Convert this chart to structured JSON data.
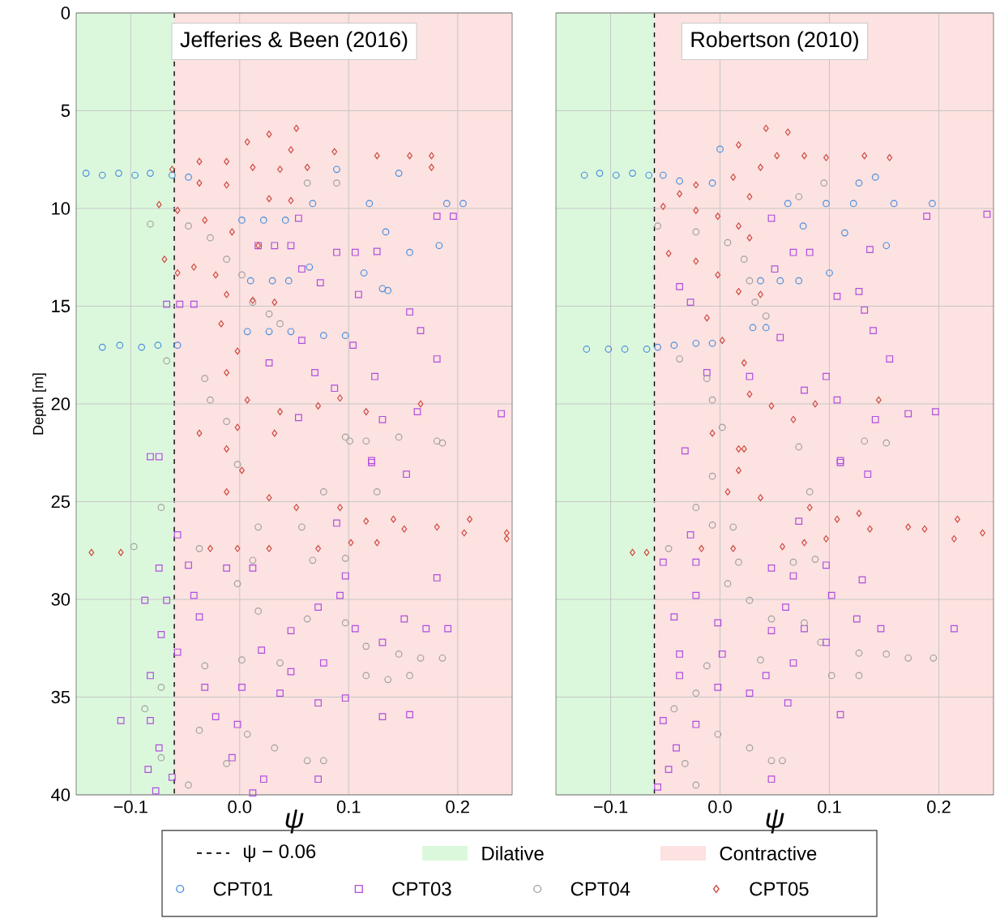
{
  "chart_data": [
    {
      "type": "scatter",
      "title": "Jefferies & Been (2016)",
      "xlabel": "ψ",
      "ylabel": "Depth [m]",
      "xlim": [
        -0.15,
        0.25
      ],
      "ylim": [
        40,
        0
      ],
      "xticks": [
        {
          "value": -0.1,
          "label": "−0.1"
        },
        {
          "value": 0.0,
          "label": "0.0"
        },
        {
          "value": 0.1,
          "label": "0.1"
        },
        {
          "value": 0.2,
          "label": "0.2"
        }
      ],
      "yticks": [
        0,
        5,
        10,
        15,
        20,
        25,
        30,
        35,
        40
      ],
      "grid": true,
      "legend": "bottom",
      "ref_lines": [
        {
          "axis": "x",
          "value": -0.06,
          "label": "ψ − 0.06",
          "color": "#000000",
          "line_style": "dashed"
        }
      ],
      "bands": [
        {
          "axis": "x",
          "from": -0.15,
          "to": -0.06,
          "label": "Dilative",
          "color": "#dcf8dc"
        },
        {
          "axis": "x",
          "from": -0.06,
          "to": 0.25,
          "label": "Contractive",
          "color": "#fce2e0"
        }
      ],
      "series": [
        {
          "name": "CPT01",
          "color": "#4a8ee0",
          "marker": "circle",
          "x": [
            -0.141,
            -0.126,
            -0.111,
            -0.096,
            -0.082,
            -0.062,
            -0.047,
            0.089,
            0.146,
            0.067,
            0.119,
            0.19,
            0.205,
            0.002,
            0.022,
            0.042,
            0.134,
            0.183,
            0.156,
            0.01,
            0.03,
            0.045,
            0.064,
            0.114,
            0.131,
            0.136,
            -0.126,
            -0.11,
            -0.09,
            -0.075,
            -0.057,
            0.007,
            0.027,
            0.047,
            0.077,
            0.097
          ],
          "values": [
            8.2,
            8.3,
            8.2,
            8.3,
            8.2,
            8.3,
            8.4,
            8.0,
            8.2,
            9.75,
            9.75,
            9.75,
            9.75,
            10.6,
            10.6,
            10.6,
            11.2,
            11.9,
            12.25,
            13.7,
            13.7,
            13.7,
            13.0,
            13.3,
            14.1,
            14.2,
            17.1,
            17.0,
            17.1,
            17.0,
            17.0,
            16.3,
            16.3,
            16.3,
            16.5,
            16.5
          ]
        },
        {
          "name": "CPT03",
          "color": "#b04ee0",
          "marker": "square",
          "x": [
            0.054,
            0.181,
            0.196,
            0.089,
            0.106,
            0.126,
            0.057,
            0.074,
            0.109,
            0.156,
            0.166,
            0.181,
            0.057,
            0.104,
            0.027,
            0.069,
            0.124,
            0.087,
            0.24,
            0.163,
            0.131,
            0.054,
            -0.074,
            0.121,
            -0.067,
            -0.055,
            -0.042,
            0.017,
            0.032,
            0.047,
            0.121,
            0.153,
            0.089,
            -0.082,
            -0.057,
            -0.074,
            -0.047,
            -0.012,
            0.012,
            0.097,
            0.181,
            0.092,
            -0.087,
            -0.067,
            -0.042,
            0.072,
            -0.037,
            0.047,
            0.106,
            0.151,
            0.171,
            0.191,
            -0.072,
            -0.057,
            0.131,
            0.02,
            0.077,
            -0.082,
            0.047,
            -0.032,
            0.002,
            0.037,
            0.072,
            0.097,
            -0.109,
            -0.082,
            -0.022,
            0.131,
            0.156,
            -0.002,
            -0.074,
            -0.007,
            -0.084,
            -0.062,
            0.022,
            0.072,
            -0.077,
            0.012
          ],
          "values": [
            10.5,
            10.4,
            10.4,
            12.25,
            12.25,
            12.2,
            13.1,
            13.8,
            14.4,
            15.3,
            16.25,
            17.7,
            16.75,
            17.0,
            17.9,
            18.4,
            18.6,
            19.2,
            20.5,
            20.4,
            20.8,
            20.7,
            22.7,
            23.0,
            14.9,
            14.9,
            14.9,
            11.9,
            11.9,
            11.9,
            22.9,
            23.6,
            26.1,
            22.7,
            26.7,
            28.4,
            28.25,
            28.4,
            28.4,
            28.8,
            28.9,
            29.8,
            30.05,
            30.05,
            29.8,
            30.4,
            30.9,
            31.6,
            31.5,
            31.0,
            31.5,
            31.5,
            31.8,
            32.7,
            32.2,
            32.6,
            33.25,
            33.9,
            33.7,
            34.5,
            34.5,
            34.8,
            35.3,
            35.05,
            36.2,
            36.2,
            36.0,
            36.0,
            35.9,
            36.4,
            37.6,
            38.1,
            38.7,
            39.1,
            39.2,
            39.2,
            39.8,
            39.9
          ]
        },
        {
          "name": "CPT04",
          "color": "#a0a0a0",
          "marker": "circle",
          "x": [
            -0.082,
            -0.047,
            -0.027,
            -0.012,
            0.002,
            0.012,
            0.027,
            0.037,
            -0.067,
            -0.032,
            -0.027,
            -0.012,
            0.101,
            0.116,
            0.146,
            0.181,
            0.062,
            0.089,
            0.097,
            0.186,
            -0.002,
            0.077,
            0.126,
            -0.072,
            0.017,
            0.057,
            -0.097,
            -0.037,
            0.012,
            0.067,
            0.097,
            -0.002,
            0.017,
            0.062,
            0.097,
            0.116,
            0.146,
            0.166,
            0.186,
            -0.032,
            0.002,
            0.037,
            0.116,
            0.136,
            0.156,
            -0.072,
            -0.087,
            -0.037,
            0.007,
            0.032,
            0.062,
            0.077,
            -0.072,
            -0.047,
            -0.012
          ],
          "values": [
            10.8,
            10.9,
            11.5,
            12.6,
            13.4,
            14.8,
            15.4,
            15.9,
            17.8,
            18.7,
            19.8,
            20.9,
            21.9,
            21.9,
            21.7,
            21.9,
            8.7,
            8.7,
            21.7,
            22.0,
            23.1,
            24.5,
            24.5,
            25.3,
            26.3,
            26.3,
            27.3,
            27.4,
            28.0,
            28.0,
            27.9,
            29.2,
            30.6,
            31.0,
            31.2,
            32.4,
            32.8,
            33.0,
            33.0,
            33.4,
            33.1,
            33.25,
            33.9,
            34.1,
            33.9,
            34.5,
            35.6,
            36.7,
            36.9,
            37.6,
            38.25,
            38.25,
            38.1,
            39.5,
            38.4
          ]
        },
        {
          "name": "CPT05",
          "color": "#d04a44",
          "marker": "diamond",
          "x": [
            0.027,
            0.052,
            0.007,
            0.047,
            0.087,
            0.126,
            0.156,
            0.176,
            -0.037,
            -0.012,
            -0.062,
            0.012,
            0.037,
            0.062,
            0.176,
            -0.037,
            -0.012,
            0.027,
            0.047,
            -0.074,
            -0.057,
            -0.032,
            -0.007,
            0.017,
            -0.069,
            -0.057,
            -0.042,
            -0.022,
            -0.012,
            0.012,
            0.032,
            -0.017,
            -0.002,
            -0.012,
            0.007,
            0.037,
            0.072,
            0.092,
            0.116,
            0.166,
            -0.037,
            -0.002,
            0.032,
            -0.012,
            0.002,
            -0.012,
            0.027,
            0.052,
            0.092,
            0.116,
            0.141,
            0.151,
            0.181,
            0.211,
            0.206,
            0.245,
            0.245,
            -0.136,
            -0.109,
            -0.027,
            -0.002,
            0.027,
            0.072,
            0.102,
            0.126
          ],
          "values": [
            6.2,
            5.9,
            6.6,
            7.0,
            7.1,
            7.3,
            7.3,
            7.3,
            7.6,
            7.6,
            8.0,
            7.9,
            8.0,
            7.9,
            7.9,
            8.7,
            8.8,
            9.5,
            9.6,
            9.8,
            10.1,
            10.6,
            11.2,
            11.9,
            12.6,
            13.3,
            13.0,
            13.4,
            14.4,
            14.7,
            14.8,
            15.9,
            17.3,
            18.4,
            19.8,
            20.4,
            20.1,
            19.7,
            20.4,
            20.0,
            21.5,
            21.2,
            21.5,
            22.3,
            23.4,
            24.5,
            24.8,
            25.3,
            25.3,
            26.0,
            25.9,
            26.4,
            26.3,
            25.9,
            26.6,
            26.6,
            26.9,
            27.6,
            27.6,
            27.4,
            27.4,
            27.4,
            27.4,
            27.1,
            27.1
          ]
        }
      ]
    },
    {
      "type": "scatter",
      "title": "Robertson (2010)",
      "xlabel": "ψ",
      "xlim": [
        -0.15,
        0.25
      ],
      "ylim": [
        40,
        0
      ],
      "xticks": [
        {
          "value": -0.1,
          "label": "−0.1"
        },
        {
          "value": 0.0,
          "label": "0.0"
        },
        {
          "value": 0.1,
          "label": "0.1"
        },
        {
          "value": 0.2,
          "label": "0.2"
        }
      ],
      "yticks": [
        0,
        5,
        10,
        15,
        20,
        25,
        30,
        35,
        40
      ],
      "tick_labels": "x",
      "grid": true,
      "ref_lines": [
        {
          "axis": "x",
          "value": -0.06,
          "color": "#000000",
          "line_style": "dashed"
        }
      ],
      "bands": [
        {
          "axis": "x",
          "from": -0.15,
          "to": -0.06,
          "color": "#dcf8dc"
        },
        {
          "axis": "x",
          "from": -0.06,
          "to": 0.25,
          "color": "#fce2e0"
        }
      ],
      "series": [
        {
          "color": "#4a8ee0",
          "marker": "circle",
          "x": [
            -0.124,
            -0.11,
            -0.095,
            -0.08,
            -0.065,
            -0.052,
            -0.037,
            -0.007,
            0.127,
            0.142,
            0.062,
            0.097,
            0.122,
            0.159,
            0.194,
            0.076,
            0.114,
            0.152,
            0.037,
            0.055,
            0.072,
            0.1,
            -0.122,
            -0.102,
            -0.087,
            -0.067,
            -0.057,
            -0.042,
            -0.022,
            -0.007,
            0.03,
            0.042,
            0.0
          ],
          "values": [
            8.3,
            8.2,
            8.3,
            8.2,
            8.3,
            8.3,
            8.6,
            8.7,
            8.7,
            8.4,
            9.75,
            9.75,
            9.75,
            9.75,
            9.75,
            10.9,
            11.25,
            11.9,
            13.7,
            13.7,
            13.7,
            13.3,
            17.2,
            17.2,
            17.2,
            17.2,
            17.1,
            17.0,
            16.9,
            16.9,
            16.1,
            16.1,
            6.97
          ]
        },
        {
          "color": "#b04ee0",
          "marker": "square",
          "x": [
            0.047,
            0.189,
            0.244,
            0.067,
            0.082,
            0.137,
            0.05,
            0.107,
            0.127,
            0.132,
            0.14,
            0.155,
            0.055,
            -0.037,
            -0.027,
            -0.012,
            0.027,
            0.077,
            0.097,
            0.172,
            0.197,
            0.142,
            0.107,
            -0.032,
            0.11,
            0.11,
            0.135,
            0.072,
            -0.027,
            -0.052,
            -0.022,
            0.047,
            0.067,
            0.097,
            0.13,
            0.102,
            -0.022,
            0.06,
            -0.042,
            -0.002,
            0.047,
            0.077,
            0.125,
            0.147,
            0.214,
            0.097,
            -0.037,
            0.002,
            0.067,
            -0.037,
            0.042,
            -0.002,
            0.027,
            0.062,
            0.11,
            -0.052,
            -0.022,
            -0.04,
            -0.047,
            0.047,
            -0.057
          ],
          "values": [
            10.5,
            10.4,
            10.3,
            12.25,
            12.25,
            12.1,
            13.1,
            14.5,
            14.25,
            15.2,
            16.25,
            17.7,
            16.6,
            14.0,
            14.8,
            18.4,
            18.6,
            19.3,
            18.6,
            20.5,
            20.4,
            20.8,
            19.8,
            22.4,
            23.0,
            22.9,
            23.6,
            26.0,
            26.7,
            28.1,
            28.1,
            28.4,
            28.8,
            28.25,
            29.0,
            29.8,
            29.8,
            30.4,
            30.9,
            31.2,
            31.6,
            31.5,
            31.0,
            31.5,
            31.5,
            32.2,
            32.8,
            32.8,
            33.25,
            33.9,
            33.9,
            34.5,
            34.8,
            35.3,
            35.9,
            36.2,
            36.4,
            37.6,
            38.7,
            39.2,
            39.6
          ]
        },
        {
          "color": "#a0a0a0",
          "marker": "circle",
          "x": [
            -0.057,
            -0.022,
            0.007,
            0.022,
            0.027,
            0.032,
            0.042,
            -0.037,
            -0.012,
            -0.007,
            0.002,
            0.072,
            0.132,
            0.152,
            0.095,
            0.072,
            -0.007,
            0.082,
            -0.022,
            -0.007,
            0.012,
            -0.047,
            0.017,
            0.067,
            0.087,
            0.007,
            0.027,
            0.047,
            0.077,
            0.092,
            0.127,
            0.152,
            0.172,
            0.195,
            -0.012,
            0.037,
            0.102,
            0.127,
            -0.022,
            -0.042,
            -0.002,
            0.027,
            0.047,
            0.057,
            -0.032,
            -0.022
          ],
          "values": [
            10.9,
            11.2,
            11.75,
            12.6,
            13.7,
            14.8,
            15.5,
            17.7,
            18.7,
            19.8,
            21.2,
            22.2,
            21.9,
            22.0,
            8.7,
            9.4,
            23.7,
            24.5,
            25.3,
            26.2,
            26.3,
            27.4,
            28.1,
            28.1,
            27.95,
            29.2,
            30.05,
            31.0,
            31.2,
            32.2,
            32.75,
            32.8,
            33.0,
            33.0,
            33.4,
            33.1,
            33.9,
            33.9,
            34.8,
            35.6,
            36.9,
            37.6,
            38.25,
            38.25,
            38.4,
            39.5
          ]
        },
        {
          "color": "#d04a44",
          "marker": "diamond",
          "x": [
            0.042,
            0.062,
            0.017,
            0.052,
            0.077,
            0.097,
            0.132,
            0.155,
            0.037,
            0.012,
            -0.022,
            -0.037,
            0.027,
            -0.052,
            -0.022,
            -0.002,
            0.017,
            0.027,
            -0.047,
            -0.022,
            -0.002,
            0.017,
            0.037,
            -0.012,
            0.002,
            0.022,
            0.027,
            0.047,
            0.087,
            0.145,
            0.067,
            -0.007,
            0.017,
            0.022,
            0.017,
            0.007,
            0.037,
            0.082,
            0.107,
            0.127,
            0.137,
            0.172,
            0.187,
            0.217,
            0.24,
            0.214,
            -0.08,
            -0.067,
            -0.017,
            0.012,
            0.057,
            0.077,
            0.097
          ],
          "values": [
            5.9,
            6.1,
            6.75,
            7.3,
            7.3,
            7.4,
            7.3,
            7.4,
            7.9,
            8.4,
            8.8,
            9.25,
            9.4,
            9.9,
            10.1,
            10.4,
            10.9,
            11.5,
            12.3,
            12.7,
            13.4,
            14.25,
            14.4,
            15.6,
            16.75,
            17.9,
            19.5,
            20.1,
            20.0,
            19.8,
            20.8,
            21.5,
            22.3,
            22.3,
            23.4,
            24.5,
            24.8,
            25.3,
            25.9,
            25.6,
            26.4,
            26.3,
            26.4,
            25.9,
            26.6,
            26.9,
            27.6,
            27.6,
            27.4,
            27.4,
            27.3,
            27.1,
            26.9
          ]
        }
      ]
    }
  ]
}
